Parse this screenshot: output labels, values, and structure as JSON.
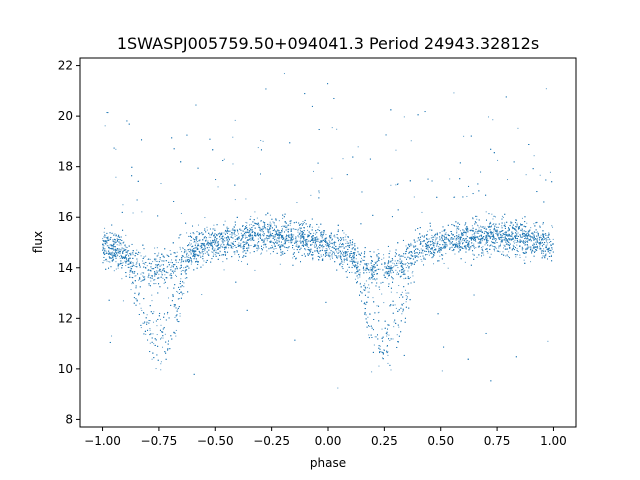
{
  "chart_data": {
    "type": "scatter",
    "title": "1SWASPJ005759.50+094041.3 Period 24943.32812s",
    "xlabel": "phase",
    "ylabel": "flux",
    "xlim": [
      -1.1,
      1.1
    ],
    "ylim": [
      7.7,
      22.3
    ],
    "xticks": [
      -1.0,
      -0.75,
      -0.5,
      -0.25,
      0.0,
      0.25,
      0.5,
      0.75,
      1.0
    ],
    "xtick_labels": [
      "−1.00",
      "−0.75",
      "−0.50",
      "−0.25",
      "0.00",
      "0.25",
      "0.50",
      "0.75",
      "1.00"
    ],
    "yticks": [
      8,
      10,
      12,
      14,
      16,
      18,
      20,
      22
    ],
    "ytick_labels": [
      "8",
      "10",
      "12",
      "14",
      "16",
      "18",
      "20",
      "22"
    ],
    "grid": false,
    "marker_color": "#1f77b4",
    "light_curve": {
      "description_points_phase": [
        -1.0,
        -0.9,
        -0.8,
        -0.75,
        -0.7,
        -0.6,
        -0.5,
        -0.25,
        0.0,
        0.1,
        0.2,
        0.25,
        0.3,
        0.4,
        0.5,
        0.75,
        1.0
      ],
      "description_points_flux": [
        14.9,
        14.5,
        13.9,
        14.0,
        14.1,
        14.7,
        15.0,
        15.3,
        14.9,
        14.5,
        13.9,
        14.0,
        14.1,
        14.7,
        15.0,
        15.3,
        14.9
      ],
      "eclipse_centers": [
        -0.75,
        0.25
      ],
      "eclipse_depth_flux": 10.2,
      "scatter_sigma": 0.35
    }
  }
}
